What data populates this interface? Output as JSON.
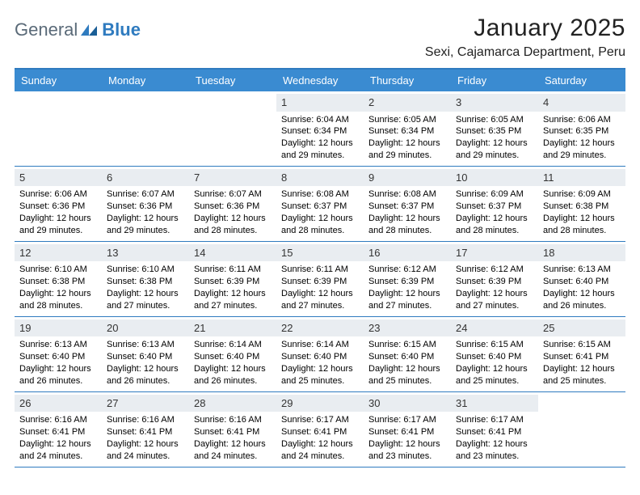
{
  "brand": {
    "general": "General",
    "blue": "Blue"
  },
  "header": {
    "month_title": "January 2025",
    "location": "Sexi, Cajamarca Department, Peru"
  },
  "colors": {
    "header_bar": "#3a8bd1",
    "accent_line": "#2f7bbf",
    "daynum_bg": "#e9edf1",
    "page_bg": "#ffffff",
    "text": "#000000",
    "brand_grey": "#5a6a78",
    "brand_blue": "#2f7bbf"
  },
  "dow": [
    "Sunday",
    "Monday",
    "Tuesday",
    "Wednesday",
    "Thursday",
    "Friday",
    "Saturday"
  ],
  "labels": {
    "sunrise_prefix": "Sunrise: ",
    "sunset_prefix": "Sunset: ",
    "daylight_prefix": "Daylight: "
  },
  "weeks": [
    [
      null,
      null,
      null,
      {
        "n": "1",
        "sr": "6:04 AM",
        "ss": "6:34 PM",
        "dl": "12 hours and 29 minutes."
      },
      {
        "n": "2",
        "sr": "6:05 AM",
        "ss": "6:34 PM",
        "dl": "12 hours and 29 minutes."
      },
      {
        "n": "3",
        "sr": "6:05 AM",
        "ss": "6:35 PM",
        "dl": "12 hours and 29 minutes."
      },
      {
        "n": "4",
        "sr": "6:06 AM",
        "ss": "6:35 PM",
        "dl": "12 hours and 29 minutes."
      }
    ],
    [
      {
        "n": "5",
        "sr": "6:06 AM",
        "ss": "6:36 PM",
        "dl": "12 hours and 29 minutes."
      },
      {
        "n": "6",
        "sr": "6:07 AM",
        "ss": "6:36 PM",
        "dl": "12 hours and 29 minutes."
      },
      {
        "n": "7",
        "sr": "6:07 AM",
        "ss": "6:36 PM",
        "dl": "12 hours and 28 minutes."
      },
      {
        "n": "8",
        "sr": "6:08 AM",
        "ss": "6:37 PM",
        "dl": "12 hours and 28 minutes."
      },
      {
        "n": "9",
        "sr": "6:08 AM",
        "ss": "6:37 PM",
        "dl": "12 hours and 28 minutes."
      },
      {
        "n": "10",
        "sr": "6:09 AM",
        "ss": "6:37 PM",
        "dl": "12 hours and 28 minutes."
      },
      {
        "n": "11",
        "sr": "6:09 AM",
        "ss": "6:38 PM",
        "dl": "12 hours and 28 minutes."
      }
    ],
    [
      {
        "n": "12",
        "sr": "6:10 AM",
        "ss": "6:38 PM",
        "dl": "12 hours and 28 minutes."
      },
      {
        "n": "13",
        "sr": "6:10 AM",
        "ss": "6:38 PM",
        "dl": "12 hours and 27 minutes."
      },
      {
        "n": "14",
        "sr": "6:11 AM",
        "ss": "6:39 PM",
        "dl": "12 hours and 27 minutes."
      },
      {
        "n": "15",
        "sr": "6:11 AM",
        "ss": "6:39 PM",
        "dl": "12 hours and 27 minutes."
      },
      {
        "n": "16",
        "sr": "6:12 AM",
        "ss": "6:39 PM",
        "dl": "12 hours and 27 minutes."
      },
      {
        "n": "17",
        "sr": "6:12 AM",
        "ss": "6:39 PM",
        "dl": "12 hours and 27 minutes."
      },
      {
        "n": "18",
        "sr": "6:13 AM",
        "ss": "6:40 PM",
        "dl": "12 hours and 26 minutes."
      }
    ],
    [
      {
        "n": "19",
        "sr": "6:13 AM",
        "ss": "6:40 PM",
        "dl": "12 hours and 26 minutes."
      },
      {
        "n": "20",
        "sr": "6:13 AM",
        "ss": "6:40 PM",
        "dl": "12 hours and 26 minutes."
      },
      {
        "n": "21",
        "sr": "6:14 AM",
        "ss": "6:40 PM",
        "dl": "12 hours and 26 minutes."
      },
      {
        "n": "22",
        "sr": "6:14 AM",
        "ss": "6:40 PM",
        "dl": "12 hours and 25 minutes."
      },
      {
        "n": "23",
        "sr": "6:15 AM",
        "ss": "6:40 PM",
        "dl": "12 hours and 25 minutes."
      },
      {
        "n": "24",
        "sr": "6:15 AM",
        "ss": "6:40 PM",
        "dl": "12 hours and 25 minutes."
      },
      {
        "n": "25",
        "sr": "6:15 AM",
        "ss": "6:41 PM",
        "dl": "12 hours and 25 minutes."
      }
    ],
    [
      {
        "n": "26",
        "sr": "6:16 AM",
        "ss": "6:41 PM",
        "dl": "12 hours and 24 minutes."
      },
      {
        "n": "27",
        "sr": "6:16 AM",
        "ss": "6:41 PM",
        "dl": "12 hours and 24 minutes."
      },
      {
        "n": "28",
        "sr": "6:16 AM",
        "ss": "6:41 PM",
        "dl": "12 hours and 24 minutes."
      },
      {
        "n": "29",
        "sr": "6:17 AM",
        "ss": "6:41 PM",
        "dl": "12 hours and 24 minutes."
      },
      {
        "n": "30",
        "sr": "6:17 AM",
        "ss": "6:41 PM",
        "dl": "12 hours and 23 minutes."
      },
      {
        "n": "31",
        "sr": "6:17 AM",
        "ss": "6:41 PM",
        "dl": "12 hours and 23 minutes."
      },
      null
    ]
  ]
}
